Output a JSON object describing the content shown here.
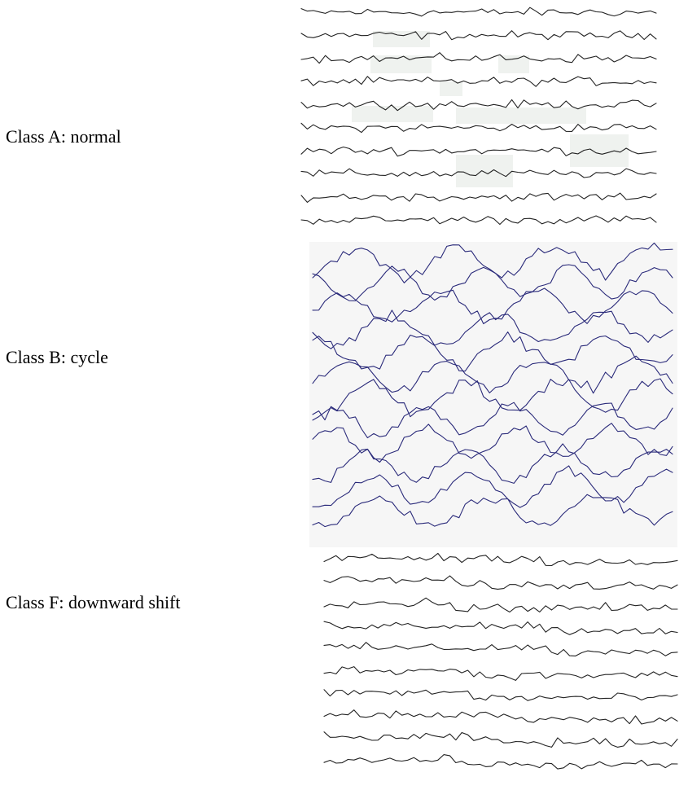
{
  "chart_data": {
    "type": "line",
    "title": "",
    "groups": [
      {
        "name": "Class A: normal",
        "pattern": "normal",
        "trace_count": 10,
        "color": "#222222"
      },
      {
        "name": "Class B: cycle",
        "pattern": "cycle",
        "trace_count": 12,
        "color": "#2a2a7a"
      },
      {
        "name": "Class F: downward shift",
        "pattern": "downward-shift",
        "trace_count": 10,
        "color": "#222222"
      }
    ],
    "points_per_trace": 60,
    "grid": false,
    "axes_shown": false,
    "legend": "none"
  },
  "colors": {
    "background": "#ffffff",
    "cycle_panel": "#f6f6f6",
    "highlight": "#e9eeea",
    "normal_trace": "#222222",
    "cycle_trace": "#2a2a7a",
    "shift_trace": "#222222"
  }
}
